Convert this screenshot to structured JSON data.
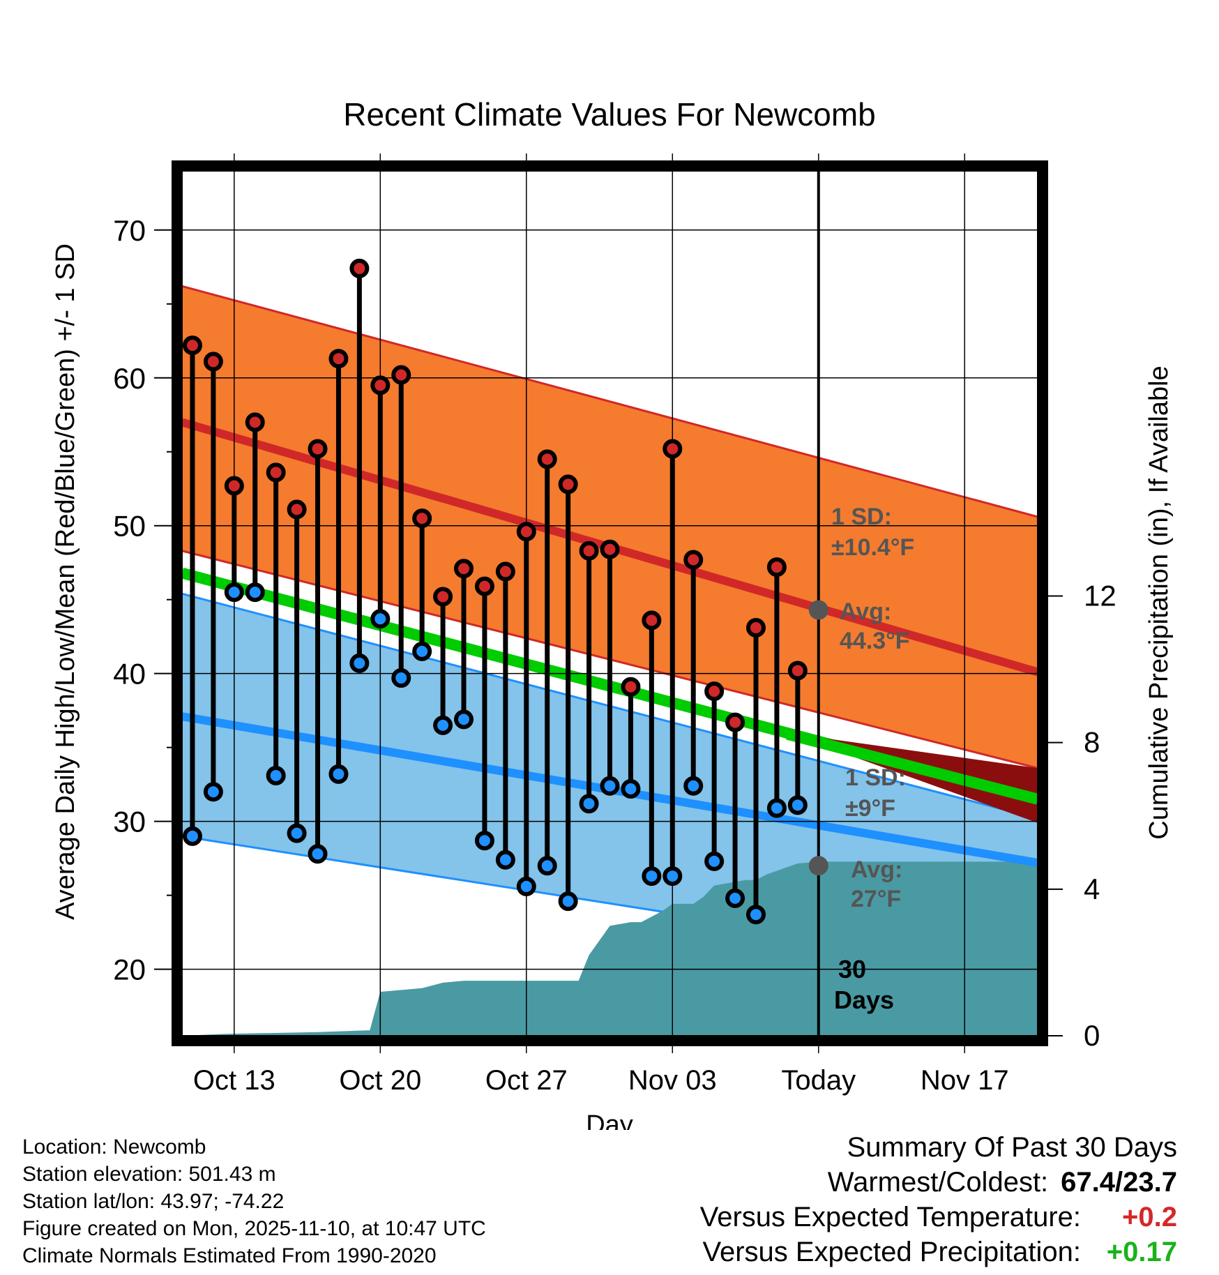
{
  "chart_data": {
    "type": "climate-range",
    "title": "Recent Climate Values For Newcomb",
    "xlabel": "Day",
    "ylabel_left": "Average Daily High/Low/Mean (Red/Blue/Green) +/- 1 SD",
    "ylabel_right": "Cumulative Precipitation (in), If Available",
    "y_left_range": [
      15.5,
      74
    ],
    "y_left_ticks": [
      20,
      30,
      40,
      50,
      60,
      70
    ],
    "y_right_range": [
      0,
      23.6
    ],
    "y_right_ticks": [
      0,
      4,
      8,
      12
    ],
    "x_range_days": [
      -29.5,
      11.5
    ],
    "x_ticks": [
      {
        "day": -27,
        "label": "Oct 13"
      },
      {
        "day": -20,
        "label": "Oct 20"
      },
      {
        "day": -13,
        "label": "Oct 27"
      },
      {
        "day": -6,
        "label": "Nov 03"
      },
      {
        "day": 1,
        "label": "Today"
      },
      {
        "day": 8,
        "label": "Nov 17"
      }
    ],
    "normals": {
      "high_avg": [
        57.0,
        40.1
      ],
      "high_sd_upper": [
        66.2,
        50.6
      ],
      "high_sd_lower": [
        48.3,
        33.6
      ],
      "low_avg": [
        37.1,
        27.2
      ],
      "low_sd_upper": [
        45.4,
        30.2
      ],
      "low_sd_lower": [
        29.0,
        19.9
      ],
      "mean_avg": [
        46.8,
        31.5
      ]
    },
    "observations": {
      "days": [
        -29,
        -28,
        -27,
        -26,
        -25,
        -24,
        -23,
        -22,
        -21,
        -20,
        -19,
        -18,
        -17,
        -16,
        -15,
        -14,
        -13,
        -12,
        -11,
        -10,
        -9,
        -8,
        -7,
        -6,
        -5,
        -4,
        -3,
        -2,
        -1,
        0
      ],
      "highs": [
        62.2,
        61.1,
        52.7,
        57.0,
        53.6,
        51.1,
        55.2,
        61.3,
        67.4,
        59.5,
        60.2,
        50.5,
        45.2,
        47.1,
        45.9,
        46.9,
        49.6,
        54.5,
        52.8,
        48.3,
        48.4,
        39.1,
        43.6,
        55.2,
        47.7,
        38.8,
        36.7,
        43.1,
        47.2,
        40.2
      ],
      "lows": [
        29.0,
        32.0,
        45.5,
        45.5,
        33.1,
        29.2,
        27.8,
        33.2,
        40.7,
        43.7,
        39.7,
        41.5,
        36.5,
        36.9,
        28.7,
        27.4,
        25.6,
        27.0,
        24.6,
        31.2,
        32.4,
        32.2,
        26.3,
        26.3,
        32.4,
        27.3,
        24.8,
        23.7,
        30.9,
        31.1
      ]
    },
    "precip": {
      "days": [
        -29.5,
        -27.5,
        -23,
        -20.5,
        -20,
        -18,
        -17,
        -16,
        -15,
        -14,
        -13,
        -12,
        -11.5,
        -10.5,
        -10,
        -9,
        -8,
        -7.5,
        -6.5,
        -6,
        -5,
        -4.5,
        -4,
        -3,
        -2.5,
        -2,
        -1.5,
        -1,
        0,
        1,
        11.5
      ],
      "values": [
        0,
        0.05,
        0.1,
        0.15,
        1.2,
        1.3,
        1.45,
        1.5,
        1.5,
        1.5,
        1.5,
        1.5,
        1.5,
        1.5,
        2.2,
        3.0,
        3.1,
        3.1,
        3.4,
        3.6,
        3.6,
        3.8,
        4.1,
        4.2,
        4.25,
        4.25,
        4.4,
        4.5,
        4.7,
        4.75,
        4.75
      ]
    },
    "annotations": {
      "high_sd": [
        "1 SD:",
        "±10.4°F"
      ],
      "high_avg": [
        "Avg:",
        "44.3°F"
      ],
      "low_sd": [
        "1 SD:",
        "±9°F"
      ],
      "low_avg": [
        "Avg:",
        "27°F"
      ],
      "window": [
        "30",
        "Days"
      ]
    },
    "colors": {
      "high_band": "#f57b2e",
      "high_line": "#d02828",
      "low_band": "#84c3ea",
      "low_line": "#1e90ff",
      "mean_line": "#00cc00",
      "dark_red": "#8b0e0e",
      "precip": "#4a9aa4",
      "annotation": "#555555"
    }
  },
  "footer": {
    "location": "Location: Newcomb",
    "elevation": "Station elevation: 501.43 m",
    "latlon": "Station lat/lon: 43.97; -74.22",
    "created": "Figure created on Mon, 2025-11-10, at 10:47 UTC",
    "normals": "Climate Normals Estimated From 1990-2020"
  },
  "summary": {
    "title": "Summary Of Past 30 Days",
    "warmest_label": "Warmest/Coldest:",
    "warmest_value": "67.4/23.7",
    "temp_label": "Versus Expected Temperature:",
    "temp_value": "+0.2",
    "precip_label": "Versus Expected Precipitation:",
    "precip_value": "+0.17"
  }
}
